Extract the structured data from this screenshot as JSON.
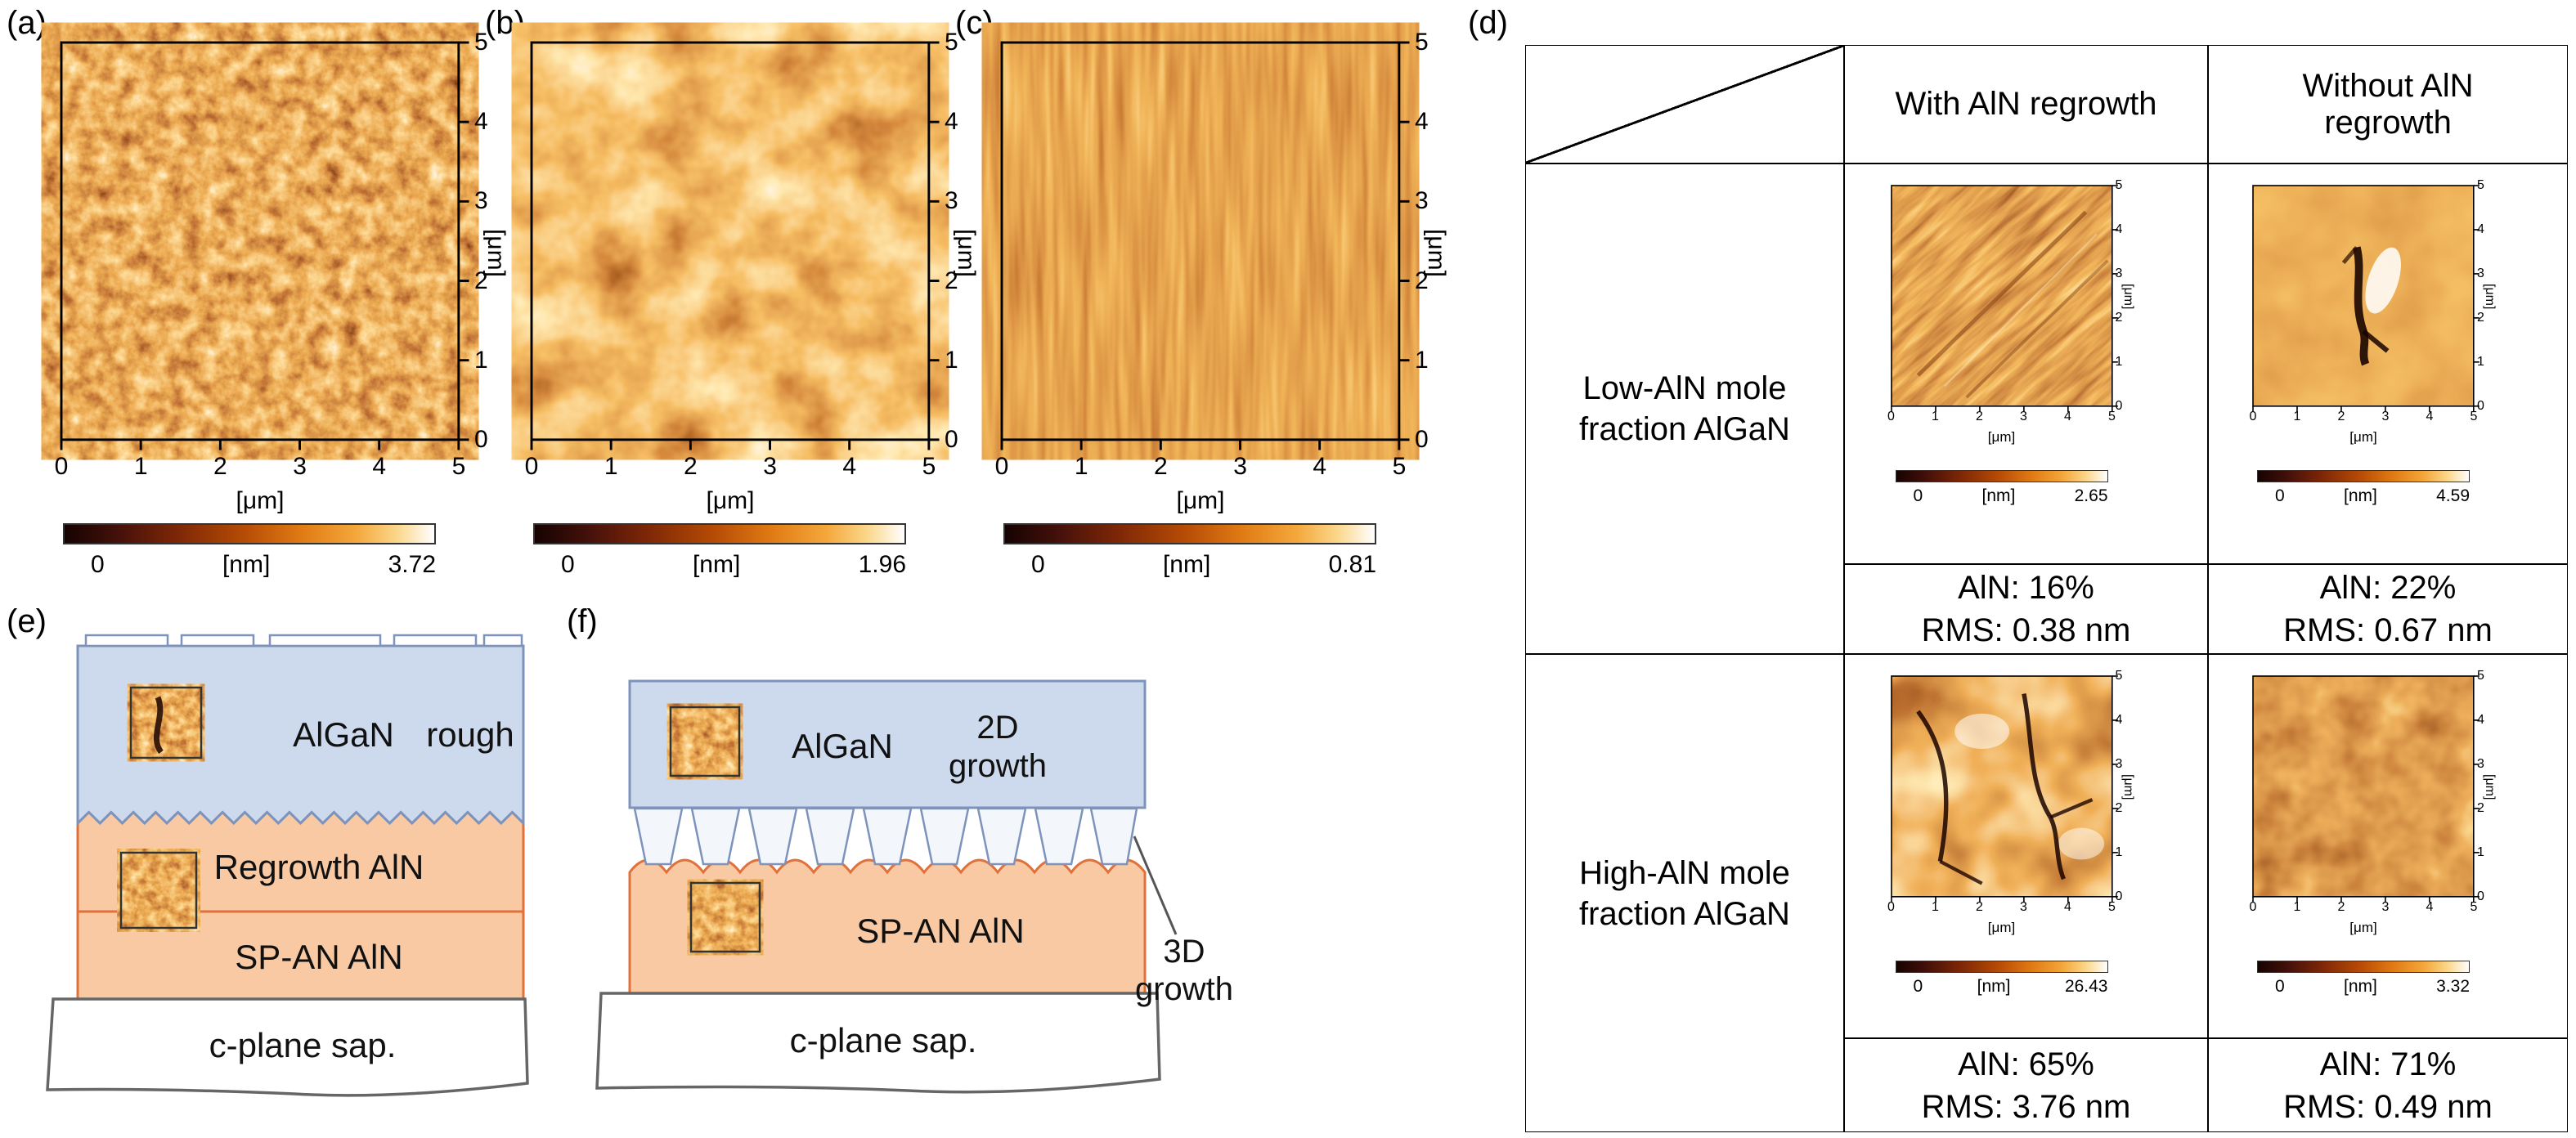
{
  "figure": {
    "axis": {
      "unit": "[μm]",
      "x_ticks": [
        "0",
        "1",
        "2",
        "3",
        "4",
        "5"
      ],
      "y_ticks": [
        "5",
        "4",
        "3",
        "2",
        "1",
        "0"
      ]
    },
    "panel_a": {
      "label": "(a)",
      "colorbar": {
        "min": "0",
        "unit": "[nm]",
        "max": "3.72"
      }
    },
    "panel_b": {
      "label": "(b)",
      "colorbar": {
        "min": "0",
        "unit": "[nm]",
        "max": "1.96"
      }
    },
    "panel_c": {
      "label": "(c)",
      "colorbar": {
        "min": "0",
        "unit": "[nm]",
        "max": "0.81"
      }
    },
    "panel_d": {
      "label": "(d)",
      "col_headers": [
        "With AlN regrowth",
        "Without AlN regrowth"
      ],
      "row_headers": [
        "Low-AlN mole fraction AlGaN",
        "High-AlN mole fraction AlGaN"
      ],
      "cells": {
        "low_with": {
          "colorbar": {
            "min": "0",
            "unit": "[nm]",
            "max": "2.65"
          },
          "aln": "AlN: 16%",
          "rms": "RMS: 0.38 nm"
        },
        "low_without": {
          "colorbar": {
            "min": "0",
            "unit": "[nm]",
            "max": "4.59"
          },
          "aln": "AlN: 22%",
          "rms": "RMS: 0.67 nm"
        },
        "high_with": {
          "colorbar": {
            "min": "0",
            "unit": "[nm]",
            "max": "26.43"
          },
          "aln": "AlN: 65%",
          "rms": "RMS: 3.76 nm"
        },
        "high_without": {
          "colorbar": {
            "min": "0",
            "unit": "[nm]",
            "max": "3.32"
          },
          "aln": "AlN: 71%",
          "rms": "RMS: 0.49 nm"
        }
      }
    },
    "panel_e": {
      "label": "(e)",
      "algan": "AlGaN",
      "rough": "rough",
      "regrowth_aln": "Regrowth AlN",
      "span_aln": "SP-AN AlN",
      "sapphire": "c-plane sap."
    },
    "panel_f": {
      "label": "(f)",
      "algan": "AlGaN",
      "growth_2d": [
        "2D",
        "growth"
      ],
      "span_aln": "SP-AN AlN",
      "sapphire": "c-plane sap.",
      "growth_3d": [
        "3D",
        "growth"
      ]
    },
    "colors": {
      "afm_dark": "#1c0600",
      "afm_mid": "#e07318",
      "afm_bright": "#ffffff",
      "algan_fill": "#cdd9ec",
      "algan_stroke": "#7d93bb",
      "aln_fill": "#f8c9a2",
      "aln_stroke": "#e0713a",
      "sapphire_stroke": "#666666",
      "table_border": "#000000"
    }
  }
}
